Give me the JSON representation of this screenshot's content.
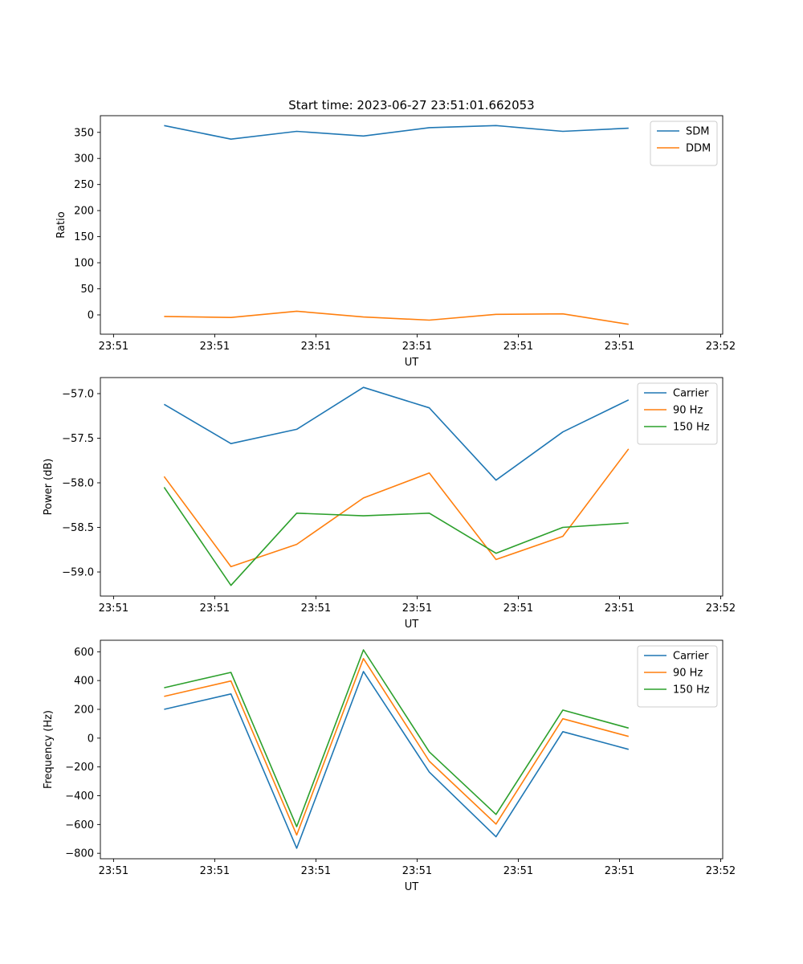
{
  "title": "Start time: 2023-06-27 23:51:01.662053",
  "colors": {
    "series1": "#1f77b4",
    "series2": "#ff7f0e",
    "series3": "#2ca02c"
  },
  "chart_data": [
    {
      "type": "line",
      "title": "Start time: 2023-06-27 23:51:01.662053",
      "xlabel": "UT",
      "ylabel": "Ratio",
      "x_tick_labels": [
        "23:51",
        "23:51",
        "23:51",
        "23:51",
        "23:51",
        "23:51",
        "23:52"
      ],
      "x_tick_positions": [
        0,
        1,
        2,
        3,
        4,
        5,
        6
      ],
      "xlim": [
        -0.13,
        6.02
      ],
      "y_ticks": [
        0,
        50,
        100,
        150,
        200,
        250,
        300,
        350
      ],
      "ylim": [
        -37,
        382
      ],
      "legend": "top-right",
      "x": [
        0.5,
        1.16,
        1.81,
        2.47,
        3.12,
        3.78,
        4.44,
        5.09
      ],
      "series": [
        {
          "name": "SDM",
          "color": "#1f77b4",
          "values": [
            363,
            337,
            352,
            343,
            359,
            363,
            352,
            358
          ]
        },
        {
          "name": "DDM",
          "color": "#ff7f0e",
          "values": [
            -3,
            -5,
            7,
            -4,
            -10,
            1,
            2,
            -18
          ]
        }
      ]
    },
    {
      "type": "line",
      "title": "",
      "xlabel": "UT",
      "ylabel": "Power (dB)",
      "x_tick_labels": [
        "23:51",
        "23:51",
        "23:51",
        "23:51",
        "23:51",
        "23:51",
        "23:52"
      ],
      "x_tick_positions": [
        0,
        1,
        2,
        3,
        4,
        5,
        6
      ],
      "xlim": [
        -0.13,
        6.02
      ],
      "y_ticks": [
        -59.0,
        -58.5,
        -58.0,
        -57.5,
        -57.0
      ],
      "y_tick_labels": [
        "−59.0",
        "−58.5",
        "−58.0",
        "−57.5",
        "−57.0"
      ],
      "ylim": [
        -59.27,
        -56.82
      ],
      "legend": "top-right",
      "x": [
        0.5,
        1.16,
        1.81,
        2.47,
        3.12,
        3.78,
        4.44,
        5.09
      ],
      "series": [
        {
          "name": "Carrier",
          "color": "#1f77b4",
          "values": [
            -57.12,
            -57.56,
            -57.4,
            -56.93,
            -57.16,
            -57.97,
            -57.43,
            -57.07
          ]
        },
        {
          "name": "90 Hz",
          "color": "#ff7f0e",
          "values": [
            -57.93,
            -58.94,
            -58.69,
            -58.17,
            -57.89,
            -58.86,
            -58.6,
            -57.62
          ]
        },
        {
          "name": "150 Hz",
          "color": "#2ca02c",
          "values": [
            -58.05,
            -59.15,
            -58.34,
            -58.37,
            -58.34,
            -58.79,
            -58.5,
            -58.45
          ]
        }
      ]
    },
    {
      "type": "line",
      "title": "",
      "xlabel": "UT",
      "ylabel": "Frequency (Hz)",
      "x_tick_labels": [
        "23:51",
        "23:51",
        "23:51",
        "23:51",
        "23:51",
        "23:51",
        "23:52"
      ],
      "x_tick_positions": [
        0,
        1,
        2,
        3,
        4,
        5,
        6
      ],
      "xlim": [
        -0.13,
        6.02
      ],
      "y_ticks": [
        -800,
        -600,
        -400,
        -200,
        0,
        200,
        400,
        600
      ],
      "y_tick_labels": [
        "−800",
        "−600",
        "−400",
        "−200",
        "0",
        "200",
        "400",
        "600"
      ],
      "ylim": [
        -838,
        680
      ],
      "legend": "top-right",
      "x": [
        0.5,
        1.16,
        1.81,
        2.47,
        3.12,
        3.78,
        4.44,
        5.09
      ],
      "series": [
        {
          "name": "Carrier",
          "color": "#1f77b4",
          "values": [
            200,
            307,
            -765,
            463,
            -236,
            -685,
            45,
            -78
          ]
        },
        {
          "name": "90 Hz",
          "color": "#ff7f0e",
          "values": [
            290,
            397,
            -673,
            553,
            -160,
            -597,
            135,
            12
          ]
        },
        {
          "name": "150 Hz",
          "color": "#2ca02c",
          "values": [
            350,
            457,
            -615,
            613,
            -95,
            -530,
            195,
            70
          ]
        }
      ]
    }
  ]
}
